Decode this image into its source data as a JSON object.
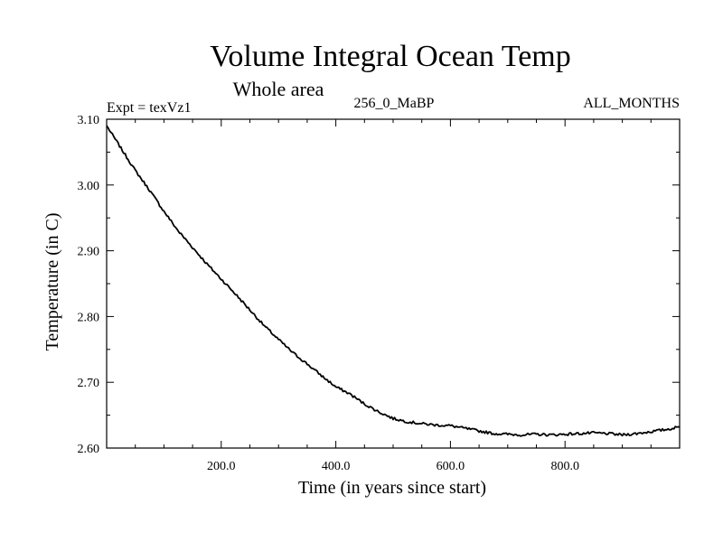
{
  "chart_data": {
    "type": "line",
    "title": "Volume Integral Ocean Temp",
    "subtitle": "Whole area",
    "experiment_label": "Expt = texVz1",
    "period_label": "256_0_MaBP",
    "months_label": "ALL_MONTHS",
    "xlabel": "Time (in years since start)",
    "ylabel": "Temperature (in C)",
    "xlim": [
      0,
      1000
    ],
    "ylim": [
      2.6,
      3.1
    ],
    "x_ticks": [
      200,
      400,
      600,
      800
    ],
    "x_tick_labels": [
      "200.0",
      "400.0",
      "600.0",
      "800.0"
    ],
    "y_ticks": [
      2.6,
      2.7,
      2.8,
      2.9,
      3.0,
      3.1
    ],
    "y_tick_labels": [
      "2.60",
      "2.70",
      "2.80",
      "2.90",
      "3.00",
      "3.10"
    ],
    "line_color": "#000000",
    "series": [
      {
        "name": "texVz1",
        "x": [
          0,
          25,
          50,
          75,
          100,
          125,
          150,
          175,
          200,
          225,
          250,
          275,
          300,
          325,
          350,
          375,
          400,
          425,
          450,
          475,
          500,
          525,
          550,
          575,
          600,
          625,
          650,
          675,
          700,
          725,
          750,
          775,
          800,
          825,
          850,
          875,
          900,
          925,
          950,
          975,
          1000
        ],
        "y": [
          3.09,
          3.056,
          3.022,
          2.992,
          2.96,
          2.93,
          2.905,
          2.88,
          2.857,
          2.834,
          2.81,
          2.786,
          2.765,
          2.745,
          2.728,
          2.71,
          2.693,
          2.682,
          2.667,
          2.655,
          2.645,
          2.64,
          2.637,
          2.635,
          2.634,
          2.63,
          2.626,
          2.622,
          2.621,
          2.62,
          2.621,
          2.62,
          2.621,
          2.622,
          2.623,
          2.622,
          2.62,
          2.622,
          2.625,
          2.628,
          2.632
        ]
      }
    ]
  }
}
